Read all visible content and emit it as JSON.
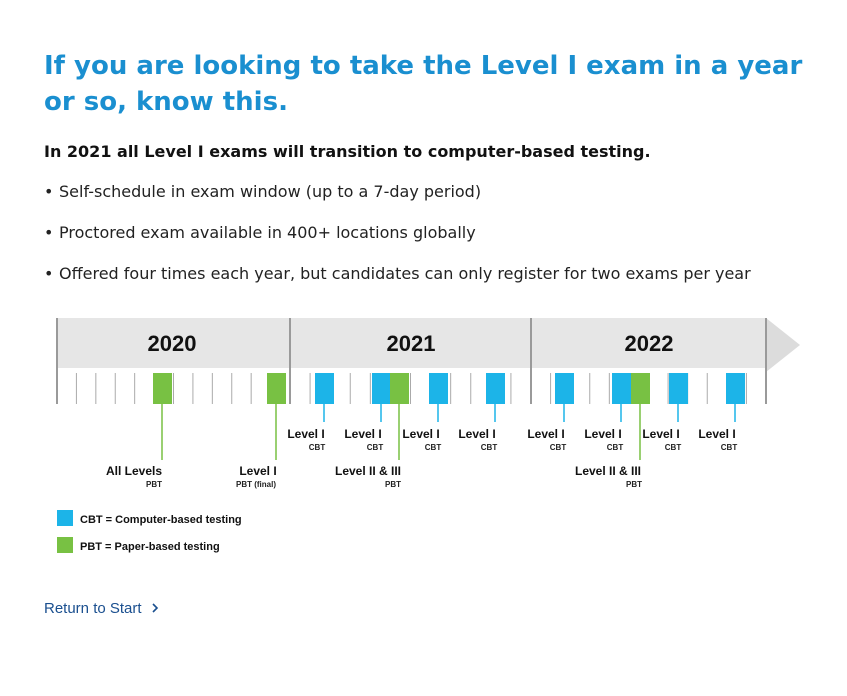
{
  "heading": "If you are looking to take the Level I exam in a year or so, know this.",
  "subheading": "In 2021 all Level I exams will transition to computer-based testing.",
  "bullets": [
    "Self-schedule in exam window (up to a 7-day period)",
    "Proctored exam available in 400+ locations globally",
    "Offered four times each year, but candidates can only register for two exams per year"
  ],
  "timeline": {
    "years": [
      "2020",
      "2021",
      "2022"
    ],
    "colors": {
      "cbt": "#1cb4e8",
      "pbt": "#78c143",
      "band": "#e6e6e6",
      "arrow": "#dcdcdc",
      "divider": "#9a9a9a",
      "tick": "#aaaaaa"
    },
    "exams": [
      {
        "type": "pbt",
        "label": "All Levels",
        "sublabel": "PBT"
      },
      {
        "type": "pbt",
        "label": "Level I",
        "sublabel": "PBT (final)"
      },
      {
        "type": "cbt",
        "label": "Level I",
        "sublabel": "CBT"
      },
      {
        "type": "cbt",
        "label": "Level I",
        "sublabel": "CBT"
      },
      {
        "type": "pbt",
        "label": "Level II & III",
        "sublabel": "PBT"
      },
      {
        "type": "cbt",
        "label": "Level I",
        "sublabel": "CBT"
      },
      {
        "type": "cbt",
        "label": "Level I",
        "sublabel": "CBT"
      },
      {
        "type": "cbt",
        "label": "Level I",
        "sublabel": "CBT"
      },
      {
        "type": "cbt",
        "label": "Level I",
        "sublabel": "CBT"
      },
      {
        "type": "pbt",
        "label": "Level II & III",
        "sublabel": "PBT"
      },
      {
        "type": "cbt",
        "label": "Level I",
        "sublabel": "CBT"
      },
      {
        "type": "cbt",
        "label": "Level I",
        "sublabel": "CBT"
      }
    ]
  },
  "legend": [
    {
      "type": "cbt",
      "text": "CBT = Computer-based testing"
    },
    {
      "type": "pbt",
      "text": "PBT = Paper-based testing"
    }
  ],
  "return_link": "Return to Start",
  "return_icon": "chevron-right-icon"
}
